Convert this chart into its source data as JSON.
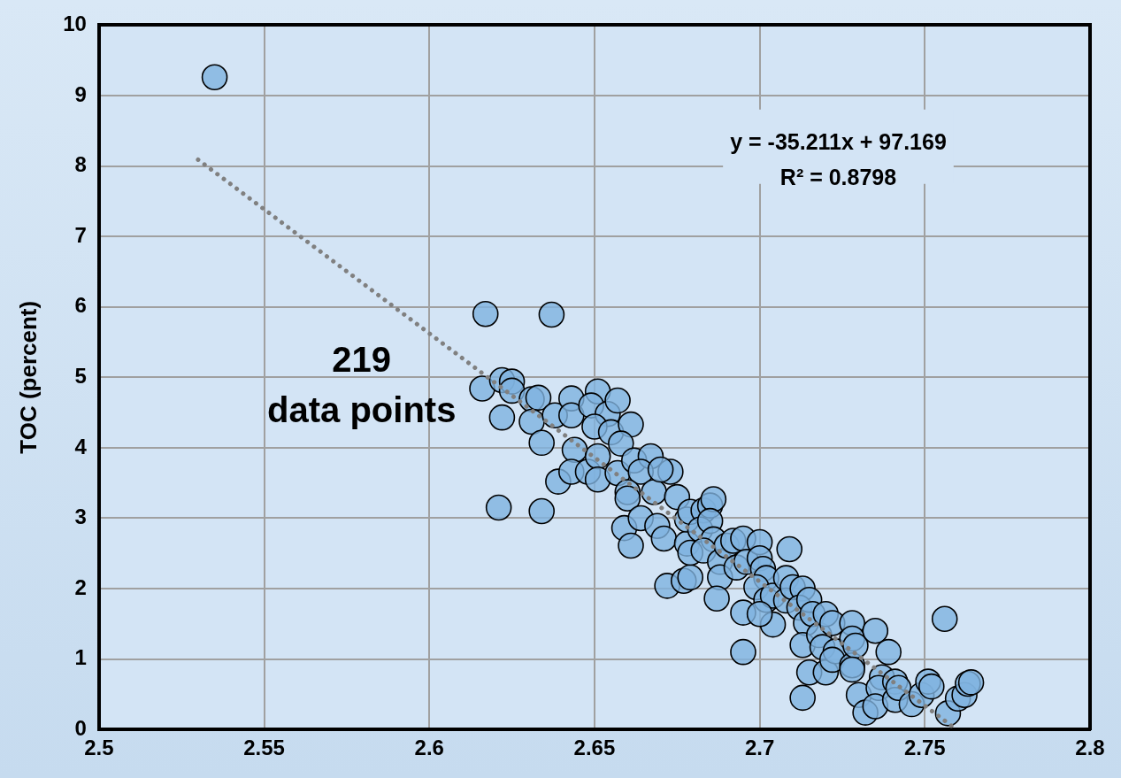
{
  "chart_data": {
    "type": "scatter",
    "ylabel": "TOC (percent)",
    "xlim": [
      2.5,
      2.8
    ],
    "ylim": [
      0,
      10
    ],
    "xticks": [
      2.5,
      2.55,
      2.6,
      2.65,
      2.7,
      2.75,
      2.8
    ],
    "yticks": [
      0,
      1,
      2,
      3,
      4,
      5,
      6,
      7,
      8,
      9,
      10
    ],
    "grid": true,
    "legend": false,
    "marker": "circle",
    "annotations": [
      "219",
      "data points",
      "y = -35.211x + 97.169",
      "R² = 0.8798"
    ],
    "series": [
      {
        "type": "scatter",
        "color": "#7fb3e0",
        "x": [
          2.535,
          2.617,
          2.637,
          2.616,
          2.622,
          2.625,
          2.625,
          2.622,
          2.621,
          2.634,
          2.631,
          2.633,
          2.631,
          2.634,
          2.639,
          2.638,
          2.643,
          2.643,
          2.644,
          2.643,
          2.648,
          2.651,
          2.649,
          2.654,
          2.657,
          2.65,
          2.655,
          2.661,
          2.658,
          2.651,
          2.651,
          2.657,
          2.662,
          2.667,
          2.664,
          2.66,
          2.66,
          2.659,
          2.661,
          2.664,
          2.669,
          2.668,
          2.673,
          2.67,
          2.675,
          2.671,
          2.672,
          2.677,
          2.679,
          2.678,
          2.679,
          2.678,
          2.679,
          2.683,
          2.685,
          2.686,
          2.682,
          2.685,
          2.686,
          2.683,
          2.688,
          2.688,
          2.687,
          2.69,
          2.692,
          2.695,
          2.693,
          2.696,
          2.695,
          2.695,
          2.7,
          2.7,
          2.701,
          2.702,
          2.699,
          2.702,
          2.704,
          2.704,
          2.7,
          2.709,
          2.708,
          2.708,
          2.71,
          2.713,
          2.712,
          2.714,
          2.713,
          2.713,
          2.715,
          2.715,
          2.716,
          2.718,
          2.719,
          2.72,
          2.72,
          2.722,
          2.723,
          2.722,
          2.728,
          2.728,
          2.728,
          2.729,
          2.728,
          2.73,
          2.732,
          2.735,
          2.739,
          2.737,
          2.736,
          2.735,
          2.741,
          2.741,
          2.742,
          2.746,
          2.749,
          2.751,
          2.752,
          2.756,
          2.757,
          2.76,
          2.762,
          2.763,
          2.764
        ],
        "values": [
          9.26,
          5.9,
          5.89,
          4.84,
          4.96,
          4.94,
          4.81,
          4.43,
          3.15,
          3.1,
          4.69,
          4.71,
          4.37,
          4.07,
          3.52,
          4.46,
          4.7,
          4.46,
          3.97,
          3.66,
          3.66,
          4.8,
          4.6,
          4.48,
          4.67,
          4.3,
          4.22,
          4.33,
          4.06,
          3.88,
          3.55,
          3.64,
          3.82,
          3.88,
          3.66,
          3.37,
          3.28,
          2.86,
          2.61,
          3.0,
          2.89,
          3.37,
          3.66,
          3.69,
          3.3,
          2.71,
          2.04,
          2.11,
          2.16,
          2.64,
          2.51,
          2.98,
          3.09,
          3.11,
          3.18,
          3.27,
          2.84,
          2.96,
          2.7,
          2.54,
          2.38,
          2.16,
          1.86,
          2.61,
          2.68,
          2.71,
          2.3,
          2.38,
          1.66,
          1.1,
          2.66,
          2.43,
          2.28,
          2.15,
          2.02,
          1.84,
          1.9,
          1.49,
          1.64,
          2.56,
          2.15,
          1.83,
          2.02,
          2.0,
          1.73,
          1.51,
          1.2,
          0.45,
          0.81,
          1.84,
          1.64,
          1.34,
          1.17,
          0.81,
          1.64,
          1.51,
          1.11,
          0.99,
          1.51,
          1.29,
          0.91,
          1.19,
          0.85,
          0.49,
          0.24,
          1.4,
          1.1,
          0.74,
          0.59,
          0.33,
          0.68,
          0.42,
          0.59,
          0.36,
          0.49,
          0.68,
          0.61,
          1.57,
          0.23,
          0.44,
          0.49,
          0.65,
          0.67
        ]
      },
      {
        "type": "line",
        "color": "#808080",
        "line_style": "dotted",
        "marker": "none",
        "x": [
          2.53,
          2.759
        ],
        "values": [
          8.09,
          0.02
        ]
      }
    ]
  }
}
